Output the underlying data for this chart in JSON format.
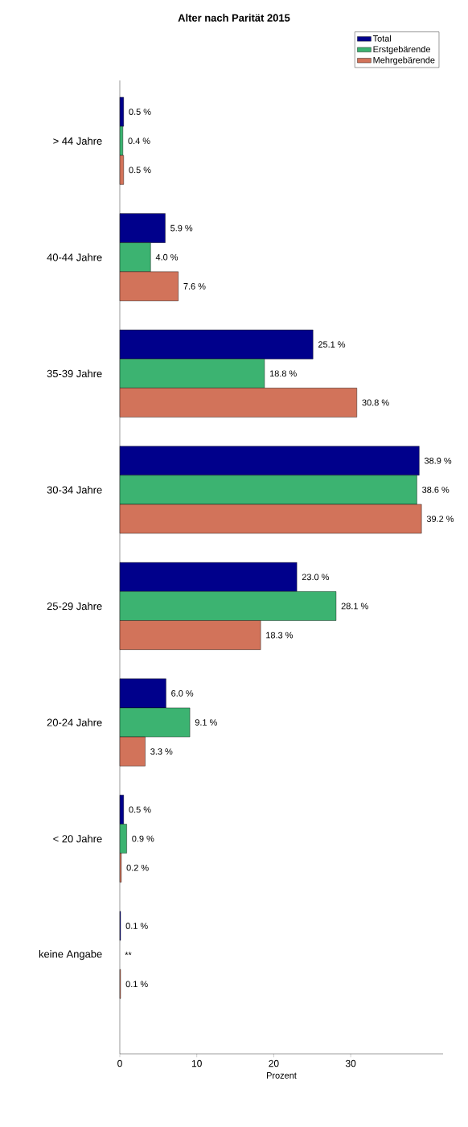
{
  "chart_data": {
    "type": "bar",
    "orientation": "horizontal",
    "title": "Alter nach Parität 2015",
    "xlabel": "Prozent",
    "categories": [
      "> 44 Jahre",
      "40-44 Jahre",
      "35-39 Jahre",
      "30-34 Jahre",
      "25-29 Jahre",
      "20-24 Jahre",
      "< 20 Jahre",
      "keine Angabe"
    ],
    "series": [
      {
        "name": "Total",
        "color": "#00008b",
        "values": [
          0.5,
          5.9,
          25.1,
          38.9,
          23.0,
          6.0,
          0.5,
          0.1
        ],
        "value_labels": [
          "0.5 %",
          "5.9 %",
          "25.1 %",
          "38.9 %",
          "23.0 %",
          "6.0 %",
          "0.5 %",
          "0.1 %"
        ]
      },
      {
        "name": "Erstgebärende",
        "color": "#3cb371",
        "values": [
          0.4,
          4.0,
          18.8,
          38.6,
          28.1,
          9.1,
          0.9,
          null
        ],
        "value_labels": [
          "0.4 %",
          "4.0 %",
          "18.8 %",
          "38.6 %",
          "28.1 %",
          "9.1 %",
          "0.9 %",
          "**"
        ]
      },
      {
        "name": "Mehrgebärende",
        "color": "#d2735a",
        "values": [
          0.5,
          7.6,
          30.8,
          39.2,
          18.3,
          3.3,
          0.2,
          0.1
        ],
        "value_labels": [
          "0.5 %",
          "7.6 %",
          "30.8 %",
          "39.2 %",
          "18.3 %",
          "3.3 %",
          "0.2 %",
          "0.1 %"
        ]
      }
    ],
    "xlim": [
      0,
      42
    ],
    "xticks": [
      0,
      10,
      20,
      30
    ],
    "legend": "top right"
  }
}
